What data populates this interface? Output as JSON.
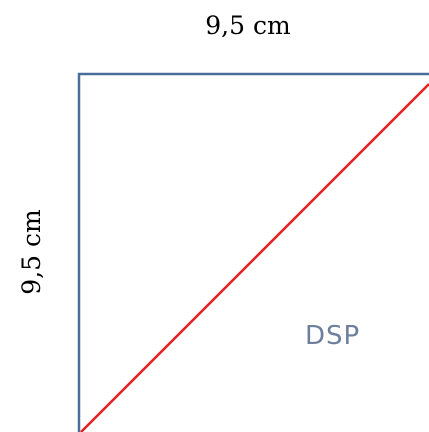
{
  "diagram": {
    "top_dimension": "9,5 cm",
    "side_dimension": "9,5 cm",
    "label": "DSP"
  },
  "colors": {
    "outline": "#4a6e99",
    "diagonal": "#e81e1e",
    "label": "#6d7f9c",
    "text": "#000000"
  }
}
